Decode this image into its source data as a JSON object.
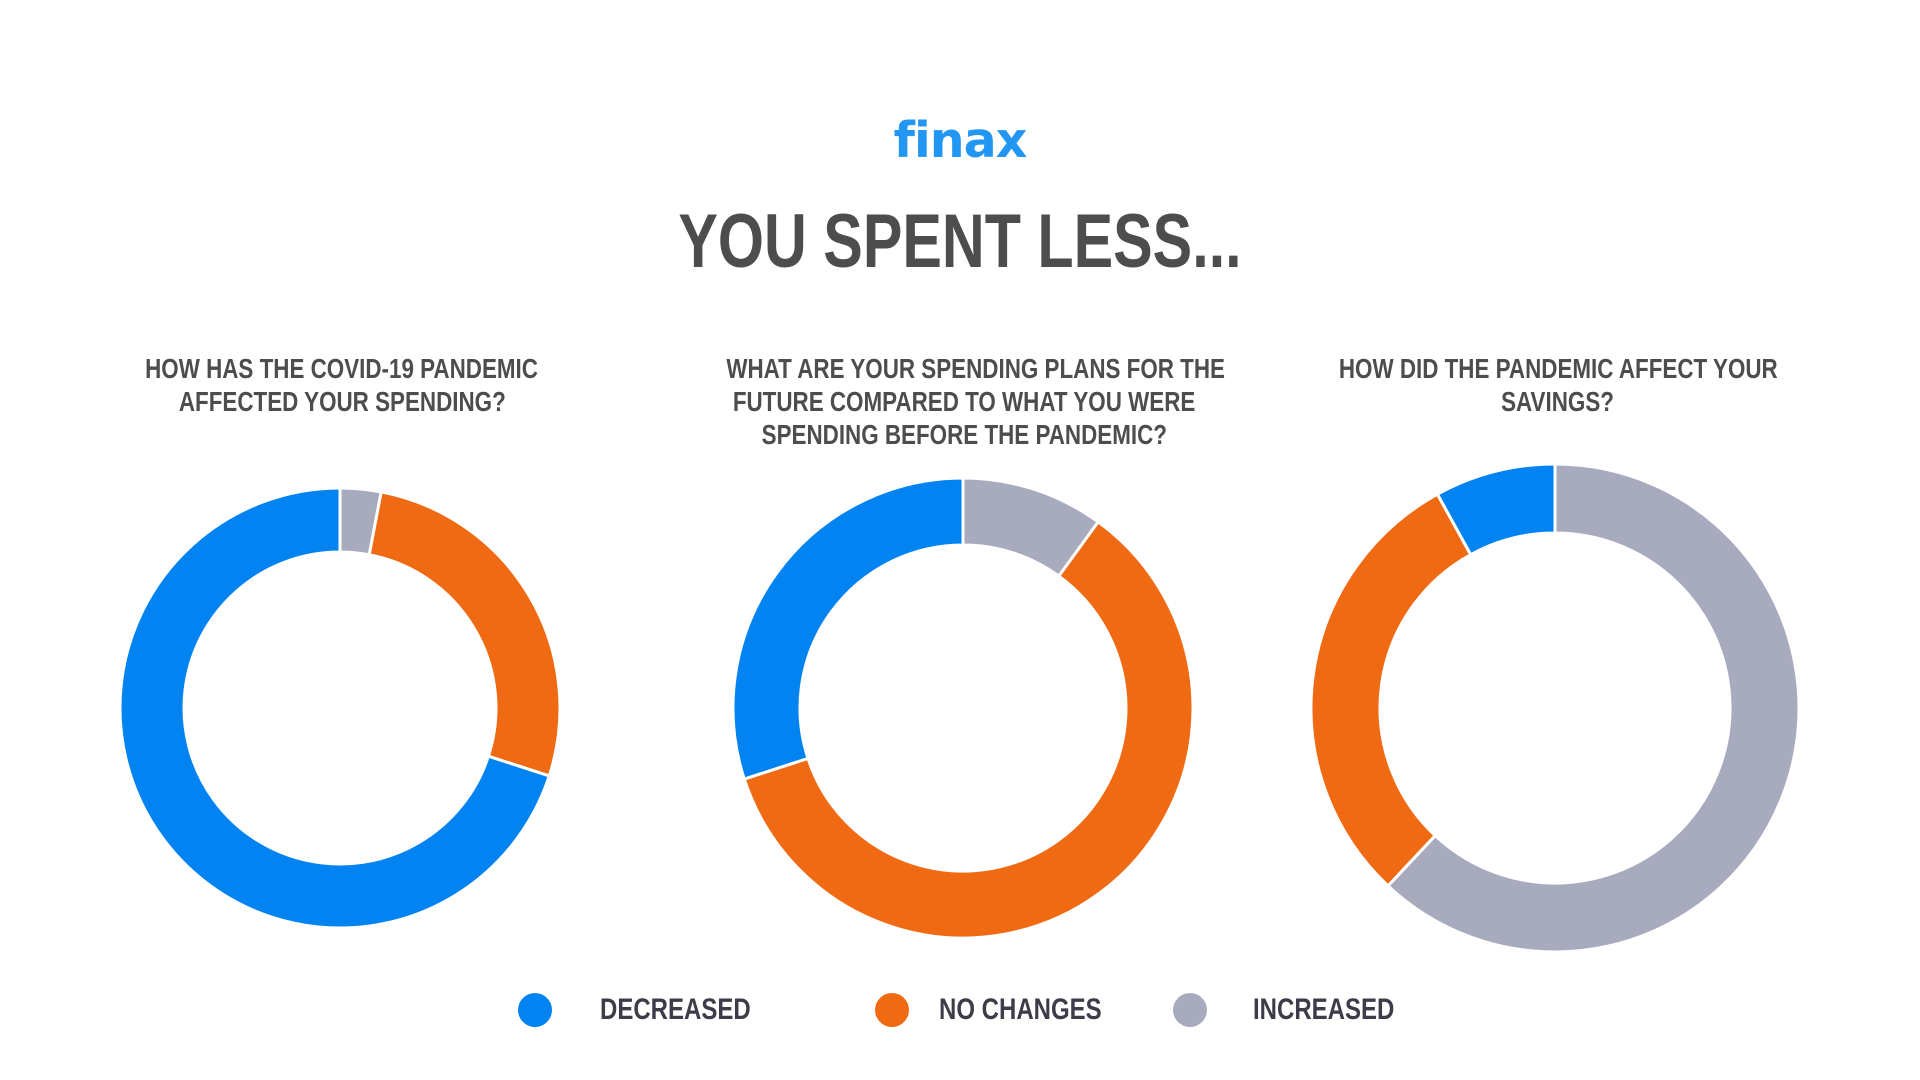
{
  "logo": "finax",
  "headline": "YOU SPENT LESS...",
  "colors": {
    "decreased": "#0283f2",
    "no_changes": "#f06a13",
    "increased": "#a8abbe"
  },
  "legend": [
    {
      "key": "decreased",
      "label": "DECREASED"
    },
    {
      "key": "no_changes",
      "label": "NO CHANGES"
    },
    {
      "key": "increased",
      "label": "INCREASED"
    }
  ],
  "chart_data": [
    {
      "type": "pie",
      "title_lines": [
        "HOW HAS THE COVID-19 PANDEMIC",
        "AFFECTED YOUR SPENDING?"
      ],
      "slices": [
        {
          "key": "increased",
          "value": 3
        },
        {
          "key": "no_changes",
          "value": 27
        },
        {
          "key": "decreased",
          "value": 70
        }
      ]
    },
    {
      "type": "pie",
      "title_lines": [
        "WHAT ARE YOUR SPENDING PLANS FOR THE",
        "FUTURE COMPARED TO WHAT YOU WERE",
        "SPENDING BEFORE THE PANDEMIC?"
      ],
      "slices": [
        {
          "key": "increased",
          "value": 10
        },
        {
          "key": "no_changes",
          "value": 60
        },
        {
          "key": "decreased",
          "value": 30
        }
      ]
    },
    {
      "type": "pie",
      "title_lines": [
        "HOW DID THE PANDEMIC AFFECT YOUR",
        "SAVINGS?"
      ],
      "slices": [
        {
          "key": "increased",
          "value": 62
        },
        {
          "key": "no_changes",
          "value": 30
        },
        {
          "key": "decreased",
          "value": 8
        }
      ]
    }
  ]
}
